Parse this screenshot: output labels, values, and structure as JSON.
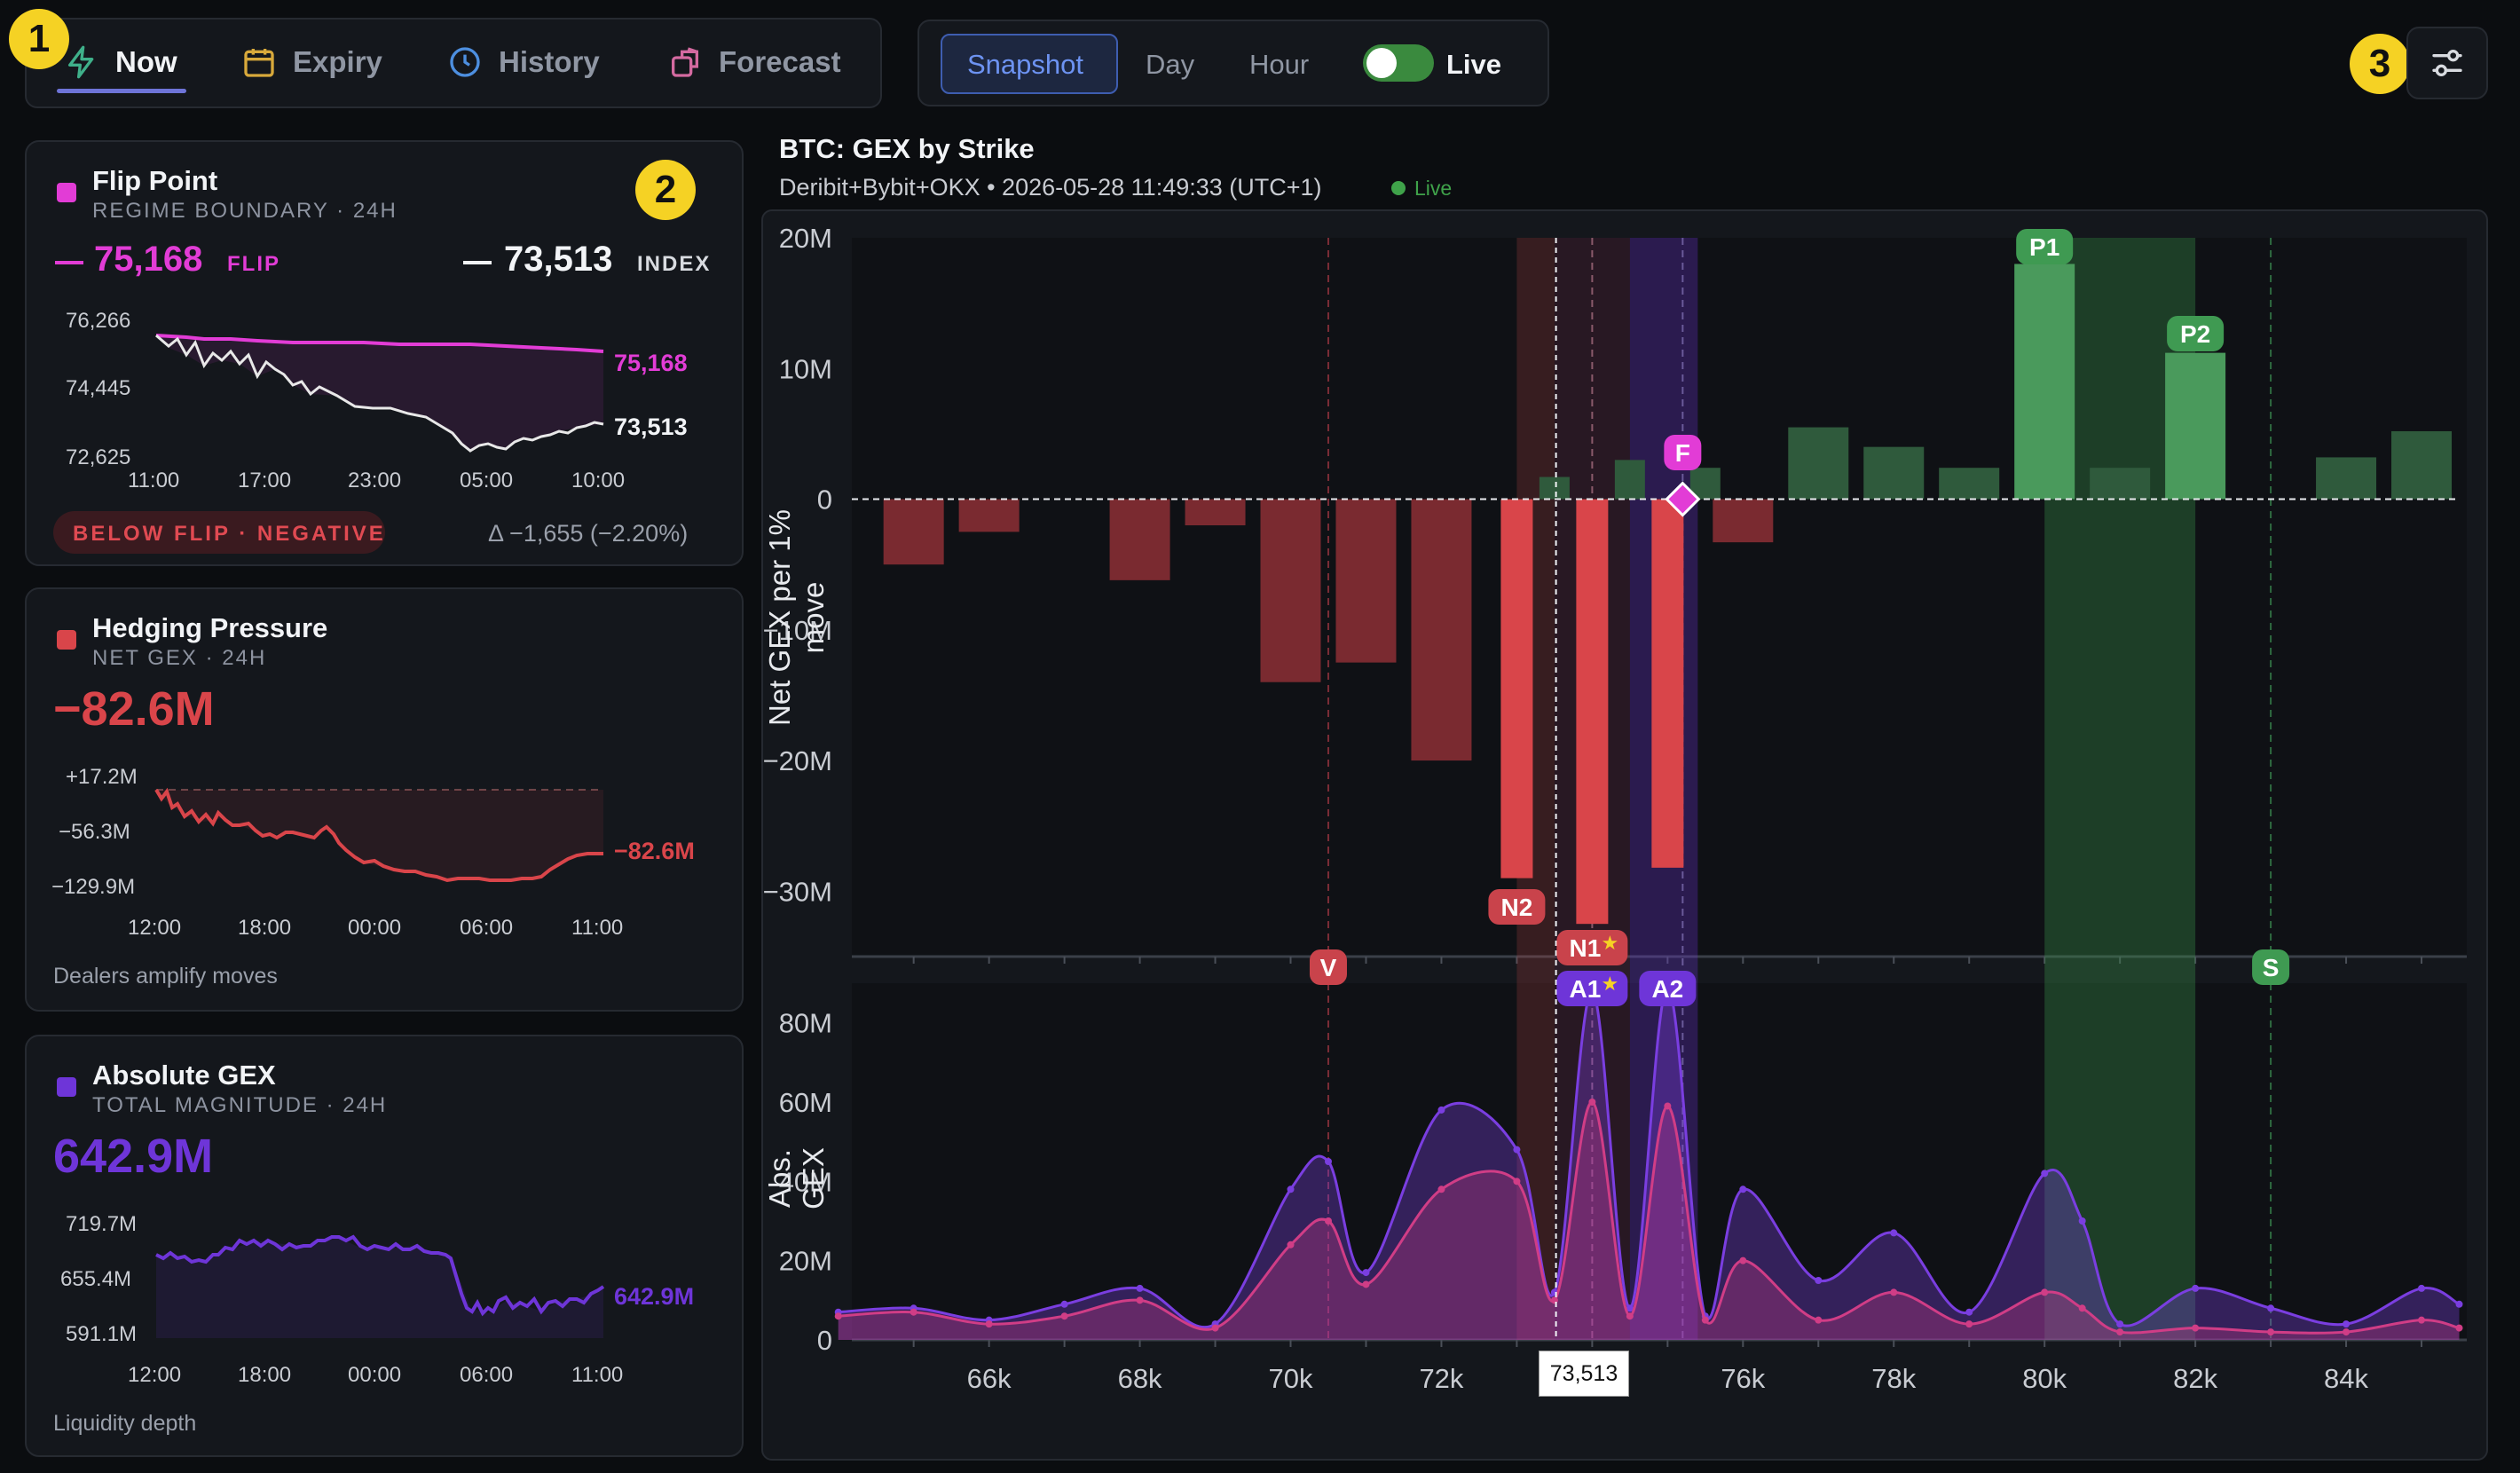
{
  "nav": {
    "tabs": [
      {
        "label": "Now",
        "icon": "bolt-icon"
      },
      {
        "label": "Expiry",
        "icon": "calendar-icon"
      },
      {
        "label": "History",
        "icon": "clock-icon"
      },
      {
        "label": "Forecast",
        "icon": "forecast-icon"
      }
    ],
    "modes": [
      "Snapshot",
      "Day",
      "Hour"
    ],
    "live_label": "Live",
    "live_on": true,
    "active_tab": "Now",
    "active_mode": "Snapshot"
  },
  "markers": [
    "1",
    "2",
    "3"
  ],
  "cards": {
    "flip": {
      "title": "Flip Point",
      "subtitle": "REGIME BOUNDARY · 24H",
      "flip_value": "75,168",
      "flip_tag": "FLIP",
      "index_value": "73,513",
      "index_tag": "INDEX",
      "y_ticks": [
        "76,266",
        "74,445",
        "72,625"
      ],
      "x_ticks": [
        "11:00",
        "17:00",
        "23:00",
        "05:00",
        "10:00"
      ],
      "end_flip": "75,168",
      "end_index": "73,513",
      "status": "BELOW FLIP · NEGATIVE",
      "delta": "Δ −1,655 (−2.20%)",
      "color": "#e23cd6"
    },
    "hedging": {
      "title": "Hedging Pressure",
      "subtitle": "NET GEX · 24H",
      "value": "−82.6M",
      "y_ticks": [
        "+17.2M",
        "−56.3M",
        "−129.9M"
      ],
      "x_ticks": [
        "12:00",
        "18:00",
        "00:00",
        "06:00",
        "11:00"
      ],
      "end_value": "−82.6M",
      "footer": "Dealers amplify moves",
      "color": "#d9454a"
    },
    "absgex": {
      "title": "Absolute GEX",
      "subtitle": "TOTAL MAGNITUDE · 24H",
      "value": "642.9M",
      "y_ticks": [
        "719.7M",
        "655.4M",
        "591.1M"
      ],
      "x_ticks": [
        "12:00",
        "18:00",
        "00:00",
        "06:00",
        "11:00"
      ],
      "end_value": "642.9M",
      "footer": "Liquidity depth",
      "color": "#6e35d8"
    }
  },
  "main": {
    "title": "BTC: GEX by Strike",
    "meta": "Deribit+Bybit+OKX • 2026-05-28 11:49:33 (UTC+1)",
    "live": "Live",
    "crosshair_label": "73,513"
  },
  "chart_data": [
    {
      "type": "bar",
      "title": "BTC: GEX by Strike",
      "ylabel": "Net GEX per 1% move",
      "x": [
        65000,
        66000,
        68000,
        69000,
        70000,
        71000,
        72000,
        73000,
        73500,
        74000,
        74500,
        75000,
        75500,
        76000,
        77000,
        78000,
        79000,
        80000,
        81000,
        82000,
        83000,
        84000,
        85000
      ],
      "values": [
        -5,
        -2.5,
        -6.2,
        -2,
        -14,
        -12.5,
        -20,
        -29,
        1.7,
        -32.5,
        3,
        -28.2,
        2.4,
        -3.3,
        5.5,
        4,
        2.4,
        18,
        2.4,
        11.2,
        0,
        3.2,
        5.2
      ],
      "yticks": [
        "20M",
        "10M",
        "0",
        "−10M",
        "−20M",
        "−30M"
      ],
      "ylim": [
        -35,
        20
      ],
      "unit": "M",
      "annotations": [
        "P1",
        "P2",
        "F",
        "N2",
        "N1",
        "V",
        "S"
      ]
    },
    {
      "type": "area",
      "ylabel": "Abs. GEX",
      "yticks": [
        "80M",
        "60M",
        "40M",
        "20M",
        "0"
      ],
      "xticks": [
        "66k",
        "68k",
        "70k",
        "72k",
        "74k",
        "76k",
        "78k",
        "80k",
        "82k",
        "84k"
      ],
      "ylim": [
        0,
        90
      ],
      "annotations": [
        "A1",
        "A2"
      ],
      "series": [
        {
          "x": [
            64000,
            65000,
            66000,
            67000,
            68000,
            69000,
            70000,
            70500,
            71000,
            72000,
            73000,
            73500,
            74000,
            74500,
            75000,
            75500,
            76000,
            77000,
            78000,
            79000,
            80000,
            80500,
            81000,
            82000,
            83000,
            84000,
            85000,
            85500
          ],
          "values": [
            7,
            8,
            5,
            9,
            13,
            4,
            38,
            45,
            17,
            58,
            48,
            12,
            88,
            8,
            89,
            6,
            38,
            15,
            27,
            7,
            42,
            30,
            4,
            13,
            8,
            4,
            13,
            9
          ],
          "color": "#7a3ee0"
        },
        {
          "x": [
            64000,
            65000,
            66000,
            67000,
            68000,
            69000,
            70000,
            70500,
            71000,
            72000,
            73000,
            73500,
            74000,
            74500,
            75000,
            75500,
            76000,
            77000,
            78000,
            79000,
            80000,
            80500,
            81000,
            82000,
            83000,
            84000,
            85000,
            85500
          ],
          "values": [
            6,
            7,
            4,
            6,
            10,
            3,
            24,
            30,
            14,
            38,
            40,
            10,
            60,
            6,
            59,
            5,
            20,
            5,
            12,
            4,
            12,
            8,
            2,
            3,
            2,
            2,
            5,
            3
          ],
          "color": "#d03d86"
        }
      ]
    }
  ]
}
